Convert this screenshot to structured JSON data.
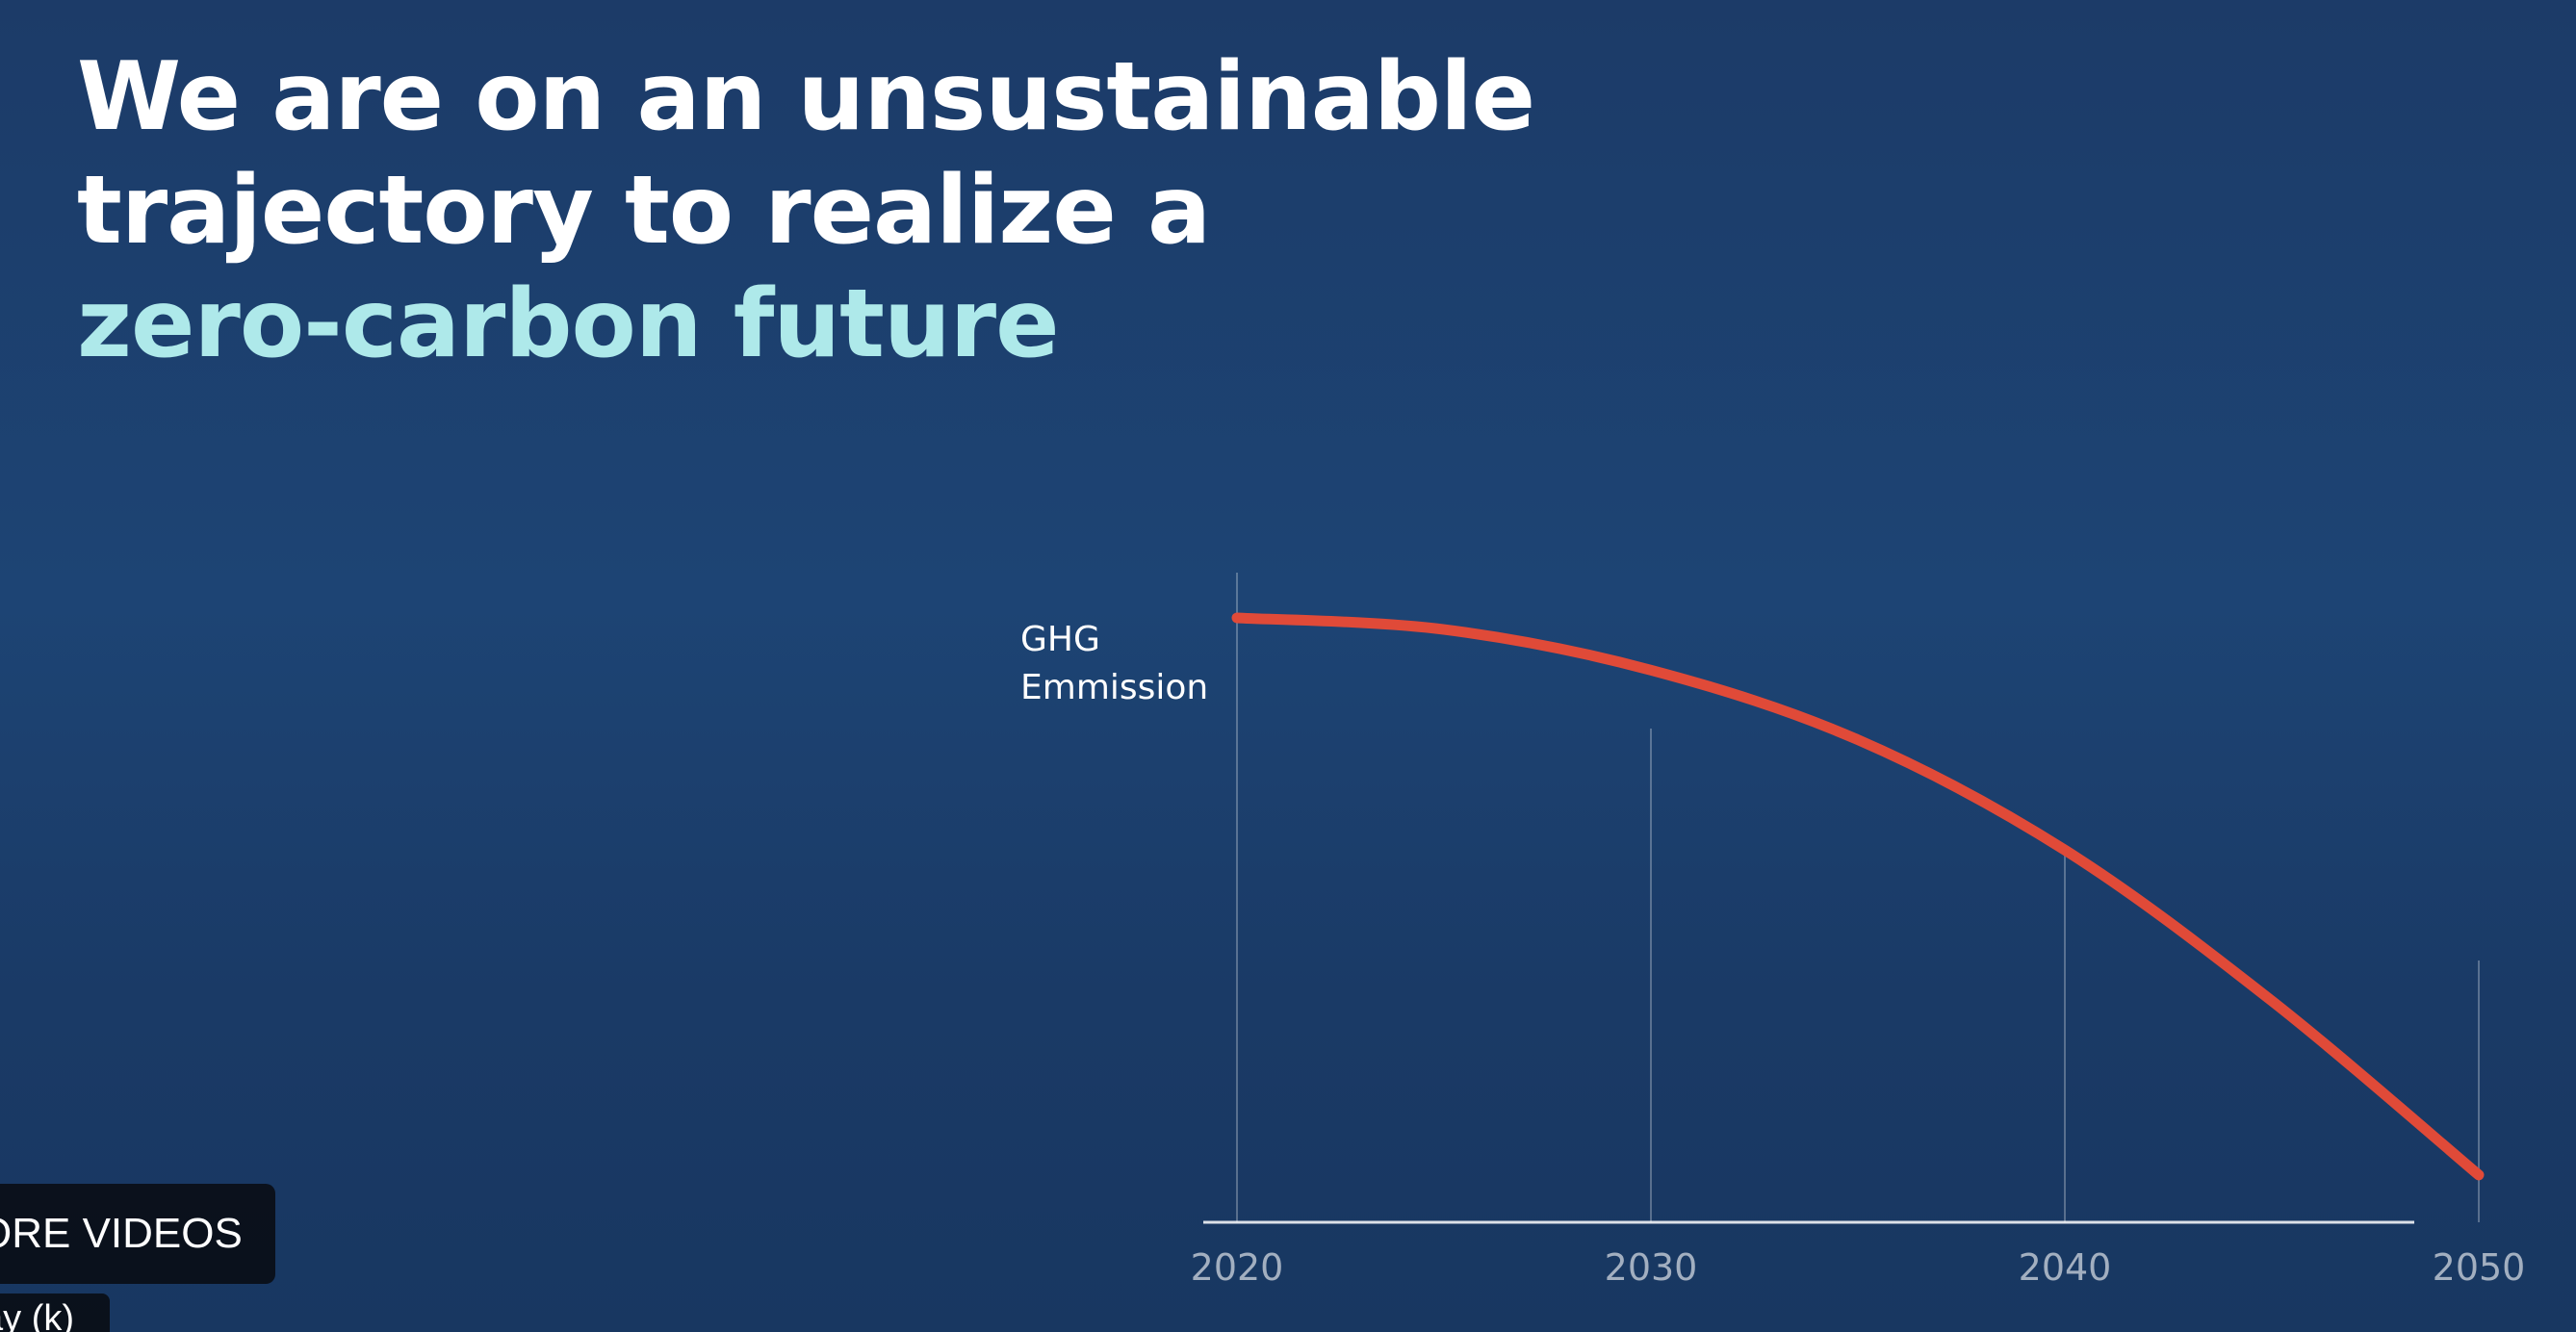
{
  "slide": {
    "headline_lines": [
      "We are on an unsustainable",
      "trajectory to realize a"
    ],
    "headline_accent": "zero-carbon future",
    "accent_color": "#aee9ea",
    "text_color": "#ffffff",
    "background_color": "#1d4474"
  },
  "player": {
    "more_videos_label": "ORE VIDEOS",
    "tooltip_text": "ay (k)"
  },
  "chart_data": {
    "type": "line",
    "title": "",
    "xlabel": "",
    "ylabel": "GHG Emmission",
    "ylabel_lines": [
      "GHG",
      "Emmission"
    ],
    "x_ticks": [
      "2020",
      "2030",
      "2040",
      "2050"
    ],
    "xlim": [
      2020,
      2050
    ],
    "ylim": [
      0,
      100
    ],
    "series": [
      {
        "color": "#e04a38",
        "x": [
          2020,
          2025,
          2030,
          2035,
          2040,
          2045,
          2050
        ],
        "y": [
          100,
          98,
          91,
          79,
          60,
          34,
          4
        ]
      }
    ],
    "grid": "vertical",
    "y_axis_tick_labels": false
  }
}
